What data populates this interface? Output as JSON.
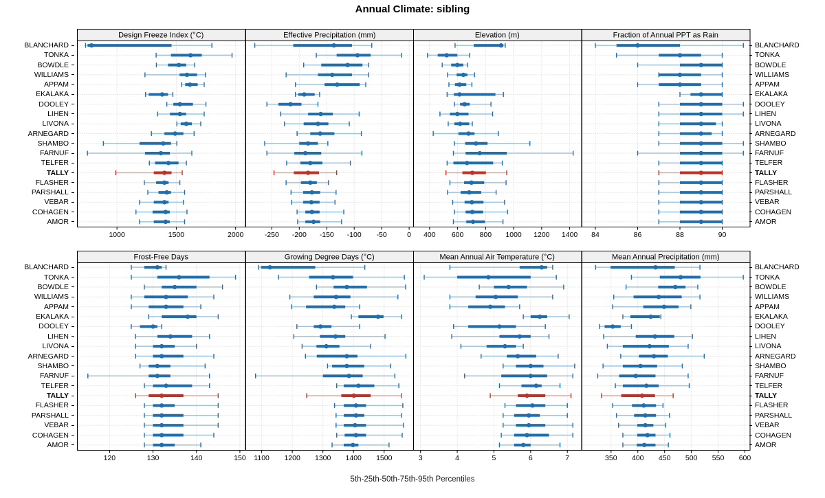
{
  "title": "Annual Climate: sibling",
  "caption": "5th-25th-50th-75th-95th Percentiles",
  "percentiles": [
    "5th",
    "25th",
    "50th",
    "75th",
    "95th"
  ],
  "stations": [
    "BLANCHARD",
    "TONKA",
    "BOWDLE",
    "WILLIAMS",
    "APPAM",
    "EKALAKA",
    "DOOLEY",
    "LIHEN",
    "LIVONA",
    "ARNEGARD",
    "SHAMBO",
    "FARNUF",
    "TELFER",
    "TALLY",
    "FLASHER",
    "PARSHALL",
    "VEBAR",
    "COHAGEN",
    "AMOR"
  ],
  "bold_station": "TALLY",
  "colors": {
    "blue": "#1F6FB0",
    "blue_light": "#9CC4E1",
    "red": "#BE3328",
    "red_light": "#E5A79E",
    "grid": "#D3D3D3",
    "strip_bg": "#F0F0F0",
    "border": "#000000",
    "text": "#000000"
  },
  "chart_data": [
    {
      "type": "scatter",
      "subtype": "percentile-interval-dotplot",
      "title": "Design Freeze Index (°C)",
      "grid_row": 1,
      "grid_col": 1,
      "xlim": [
        663,
        2080
      ],
      "ticks": [
        1000,
        1500,
        2000
      ],
      "values": [
        [
          735,
          752,
          785,
          1460,
          1800
        ],
        [
          1330,
          1455,
          1620,
          1715,
          1970
        ],
        [
          1332,
          1430,
          1522,
          1583,
          1655
        ],
        [
          1236,
          1528,
          1590,
          1675,
          1745
        ],
        [
          1545,
          1575,
          1615,
          1680,
          1735
        ],
        [
          1241,
          1267,
          1381,
          1430,
          1471
        ],
        [
          1420,
          1475,
          1530,
          1640,
          1750
        ],
        [
          1343,
          1447,
          1530,
          1583,
          1735
        ],
        [
          1505,
          1537,
          1584,
          1631,
          1706
        ],
        [
          1290,
          1400,
          1490,
          1560,
          1650
        ],
        [
          885,
          1190,
          1390,
          1455,
          1505
        ],
        [
          751,
          1236,
          1370,
          1446,
          1631
        ],
        [
          1273,
          1321,
          1434,
          1519,
          1585
        ],
        [
          990,
          1310,
          1400,
          1460,
          1550
        ],
        [
          1230,
          1330,
          1400,
          1435,
          1530
        ],
        [
          1260,
          1350,
          1420,
          1455,
          1570
        ],
        [
          1190,
          1310,
          1400,
          1435,
          1560
        ],
        [
          1160,
          1300,
          1410,
          1445,
          1590
        ],
        [
          1190,
          1310,
          1410,
          1445,
          1570
        ]
      ]
    },
    {
      "type": "scatter",
      "subtype": "percentile-interval-dotplot",
      "title": "Effective Precipitation (mm)",
      "grid_row": 1,
      "grid_col": 2,
      "xlim": [
        -298,
        8
      ],
      "ticks": [
        -250,
        -200,
        -150,
        -100,
        -50,
        0
      ],
      "values": [
        [
          -281,
          -211,
          -137,
          -104,
          -68
        ],
        [
          -169,
          -132,
          -94,
          -70,
          -14
        ],
        [
          -192,
          -160,
          -112,
          -85,
          -74
        ],
        [
          -224,
          -166,
          -140,
          -104,
          -74
        ],
        [
          -207,
          -154,
          -131,
          -90,
          -79
        ],
        [
          -207,
          -202,
          -191,
          -172,
          -163
        ],
        [
          -259,
          -238,
          -216,
          -196,
          -166
        ],
        [
          -234,
          -184,
          -161,
          -139,
          -91
        ],
        [
          -227,
          -192,
          -166,
          -147,
          -109
        ],
        [
          -204,
          -180,
          -162,
          -136,
          -87
        ],
        [
          -263,
          -200,
          -184,
          -166,
          -148
        ],
        [
          -259,
          -209,
          -189,
          -160,
          -86
        ],
        [
          -223,
          -198,
          -180,
          -158,
          -107
        ],
        [
          -246,
          -210,
          -184,
          -164,
          -132
        ],
        [
          -224,
          -197,
          -180,
          -168,
          -147
        ],
        [
          -215,
          -193,
          -177,
          -162,
          -133
        ],
        [
          -214,
          -193,
          -178,
          -163,
          -135
        ],
        [
          -204,
          -189,
          -177,
          -163,
          -119
        ],
        [
          -203,
          -189,
          -174,
          -162,
          -123
        ]
      ]
    },
    {
      "type": "scatter",
      "subtype": "percentile-interval-dotplot",
      "title": "Elevation (m)",
      "grid_row": 1,
      "grid_col": 3,
      "xlim": [
        283,
        1483
      ],
      "ticks": [
        400,
        600,
        800,
        1000,
        1200,
        1400
      ],
      "values": [
        [
          582,
          715,
          910,
          927,
          940
        ],
        [
          385,
          458,
          522,
          598,
          686
        ],
        [
          490,
          554,
          598,
          641,
          670
        ],
        [
          528,
          593,
          641,
          670,
          721
        ],
        [
          538,
          581,
          614,
          662,
          702
        ],
        [
          525,
          573,
          614,
          870,
          927
        ],
        [
          577,
          618,
          650,
          686,
          838
        ],
        [
          474,
          545,
          598,
          678,
          850
        ],
        [
          533,
          577,
          618,
          683,
          705
        ],
        [
          426,
          606,
          678,
          721,
          891
        ],
        [
          577,
          654,
          731,
          814,
          1116
        ],
        [
          570,
          657,
          758,
          951,
          1425
        ],
        [
          525,
          570,
          667,
          854,
          919
        ],
        [
          517,
          634,
          705,
          802,
          951
        ],
        [
          545,
          646,
          699,
          790,
          946
        ],
        [
          528,
          622,
          683,
          769,
          875
        ],
        [
          565,
          650,
          702,
          785,
          935
        ],
        [
          577,
          657,
          705,
          782,
          956
        ],
        [
          570,
          662,
          710,
          795,
          924
        ]
      ]
    },
    {
      "type": "scatter",
      "subtype": "percentile-interval-dotplot",
      "title": "Fraction of Annual PPT as Rain",
      "grid_row": 1,
      "grid_col": 4,
      "xlim": [
        83.35,
        91.3
      ],
      "ticks": [
        84,
        86,
        88,
        90
      ],
      "values": [
        [
          84,
          85,
          86,
          88,
          91
        ],
        [
          85,
          87,
          88,
          89,
          90
        ],
        [
          86,
          88,
          89,
          90,
          90
        ],
        [
          87,
          87,
          88,
          89,
          90
        ],
        [
          86,
          87,
          88,
          89,
          90
        ],
        [
          88,
          88.5,
          89,
          90,
          90
        ],
        [
          87,
          88,
          89,
          90,
          91
        ],
        [
          87,
          88,
          89,
          90,
          91
        ],
        [
          87,
          88,
          89,
          89.7,
          90
        ],
        [
          87,
          88,
          89,
          89.5,
          90
        ],
        [
          87,
          88,
          89,
          90,
          91
        ],
        [
          86,
          88,
          89,
          90,
          91
        ],
        [
          87,
          88,
          89,
          90,
          90
        ],
        [
          87,
          88,
          89,
          90,
          90
        ],
        [
          87,
          88,
          89,
          90,
          90
        ],
        [
          87,
          88,
          89,
          90,
          90
        ],
        [
          87,
          88,
          89,
          90,
          90
        ],
        [
          87,
          88,
          89,
          90,
          90
        ],
        [
          87,
          88,
          89,
          90,
          90
        ]
      ]
    },
    {
      "type": "scatter",
      "subtype": "percentile-interval-dotplot",
      "title": "Frost-Free Days",
      "grid_row": 2,
      "grid_col": 1,
      "xlim": [
        112.5,
        151.2
      ],
      "ticks": [
        120,
        130,
        140,
        150
      ],
      "values": [
        [
          125,
          128,
          131,
          132,
          133
        ],
        [
          125,
          131,
          136,
          143,
          149
        ],
        [
          128,
          132,
          135,
          140,
          146
        ],
        [
          125,
          128,
          133,
          138,
          144
        ],
        [
          125,
          129,
          133,
          137,
          141
        ],
        [
          129,
          132,
          138,
          140,
          145
        ],
        [
          125,
          127,
          130,
          131,
          132
        ],
        [
          126,
          131,
          134,
          139,
          143
        ],
        [
          126,
          130,
          132,
          135,
          140
        ],
        [
          126,
          130,
          132,
          137,
          144
        ],
        [
          127,
          129,
          131,
          134,
          142
        ],
        [
          115,
          129,
          131,
          134,
          143
        ],
        [
          128,
          130,
          133,
          139,
          143
        ],
        [
          126,
          129,
          132,
          137,
          145
        ],
        [
          128,
          130,
          132,
          135,
          145
        ],
        [
          128,
          130,
          132,
          137,
          145
        ],
        [
          128,
          130,
          132,
          137,
          145
        ],
        [
          128,
          130,
          132,
          137,
          144
        ],
        [
          128,
          130,
          132,
          135,
          141
        ]
      ]
    },
    {
      "type": "scatter",
      "subtype": "percentile-interval-dotplot",
      "title": "Growing Degree Days (°C)",
      "grid_row": 2,
      "grid_col": 2,
      "xlim": [
        1047,
        1596
      ],
      "ticks": [
        1100,
        1200,
        1300,
        1400,
        1500
      ],
      "values": [
        [
          1090,
          1098,
          1127,
          1275,
          1437
        ],
        [
          1155,
          1255,
          1333,
          1398,
          1566
        ],
        [
          1279,
          1335,
          1378,
          1444,
          1570
        ],
        [
          1192,
          1270,
          1343,
          1390,
          1545
        ],
        [
          1198,
          1245,
          1337,
          1373,
          1420
        ],
        [
          1393,
          1416,
          1480,
          1498,
          1557
        ],
        [
          1215,
          1270,
          1292,
          1328,
          1420
        ],
        [
          1205,
          1290,
          1341,
          1373,
          1503
        ],
        [
          1232,
          1279,
          1311,
          1354,
          1456
        ],
        [
          1243,
          1280,
          1378,
          1413,
          1571
        ],
        [
          1315,
          1330,
          1378,
          1435,
          1521
        ],
        [
          1080,
          1300,
          1385,
          1430,
          1535
        ],
        [
          1345,
          1368,
          1416,
          1468,
          1548
        ],
        [
          1247,
          1360,
          1401,
          1456,
          1556
        ],
        [
          1338,
          1368,
          1408,
          1441,
          1561
        ],
        [
          1343,
          1368,
          1408,
          1435,
          1556
        ],
        [
          1343,
          1368,
          1405,
          1441,
          1563
        ],
        [
          1345,
          1371,
          1408,
          1441,
          1559
        ],
        [
          1330,
          1368,
          1398,
          1416,
          1516
        ]
      ]
    },
    {
      "type": "scatter",
      "subtype": "percentile-interval-dotplot",
      "title": "Mean Annual Air Temperature (°C)",
      "grid_row": 2,
      "grid_col": 3,
      "xlim": [
        2.8,
        7.38
      ],
      "ticks": [
        3,
        4,
        5,
        6,
        7
      ],
      "values": [
        [
          3.8,
          5.7,
          6.3,
          6.45,
          6.6
        ],
        [
          3.1,
          4.0,
          4.85,
          6.0,
          6.7
        ],
        [
          4.6,
          5.0,
          5.4,
          5.9,
          6.9
        ],
        [
          3.8,
          4.5,
          5.05,
          5.65,
          6.6
        ],
        [
          3.8,
          4.3,
          4.9,
          5.3,
          5.7
        ],
        [
          5.8,
          6.0,
          6.25,
          6.45,
          7.05
        ],
        [
          3.9,
          4.3,
          5.15,
          5.6,
          6.4
        ],
        [
          3.85,
          5.15,
          5.7,
          6.0,
          6.5
        ],
        [
          4.1,
          4.8,
          5.3,
          5.6,
          5.8
        ],
        [
          4.65,
          5.35,
          5.65,
          6.15,
          6.75
        ],
        [
          5.25,
          5.6,
          6.0,
          6.35,
          7.2
        ],
        [
          4.2,
          5.2,
          6.0,
          6.45,
          7.15
        ],
        [
          5.15,
          5.75,
          6.15,
          6.3,
          6.8
        ],
        [
          4.9,
          5.65,
          5.9,
          6.4,
          7.1
        ],
        [
          5.3,
          5.6,
          6.05,
          6.4,
          7.0
        ],
        [
          5.25,
          5.55,
          5.95,
          6.25,
          7.0
        ],
        [
          5.25,
          5.6,
          5.95,
          6.4,
          7.15
        ],
        [
          5.2,
          5.55,
          5.9,
          6.5,
          7.15
        ],
        [
          5.15,
          5.55,
          5.8,
          6.0,
          6.8
        ]
      ]
    },
    {
      "type": "scatter",
      "subtype": "percentile-interval-dotplot",
      "title": "Mean Annual Precipitation (mm)",
      "grid_row": 2,
      "grid_col": 4,
      "xlim": [
        295,
        609
      ],
      "ticks": [
        350,
        400,
        450,
        500,
        550,
        600
      ],
      "values": [
        [
          321,
          349,
          433,
          469,
          516
        ],
        [
          388,
          441,
          480,
          517,
          597
        ],
        [
          378,
          438,
          470,
          489,
          512
        ],
        [
          355,
          392,
          439,
          482,
          516
        ],
        [
          353,
          410,
          449,
          476,
          499
        ],
        [
          372,
          386,
          424,
          441,
          443
        ],
        [
          328,
          338,
          353,
          368,
          388
        ],
        [
          336,
          396,
          432,
          468,
          502
        ],
        [
          343,
          372,
          422,
          458,
          494
        ],
        [
          368,
          402,
          430,
          456,
          524
        ],
        [
          335,
          372,
          405,
          436,
          483
        ],
        [
          325,
          365,
          396,
          433,
          494
        ],
        [
          358,
          372,
          416,
          439,
          496
        ],
        [
          332,
          369,
          408,
          432,
          466
        ],
        [
          353,
          389,
          411,
          434,
          447
        ],
        [
          360,
          393,
          414,
          434,
          459
        ],
        [
          364,
          399,
          414,
          429,
          452
        ],
        [
          372,
          399,
          418,
          433,
          460
        ],
        [
          372,
          398,
          412,
          433,
          457
        ]
      ]
    }
  ]
}
